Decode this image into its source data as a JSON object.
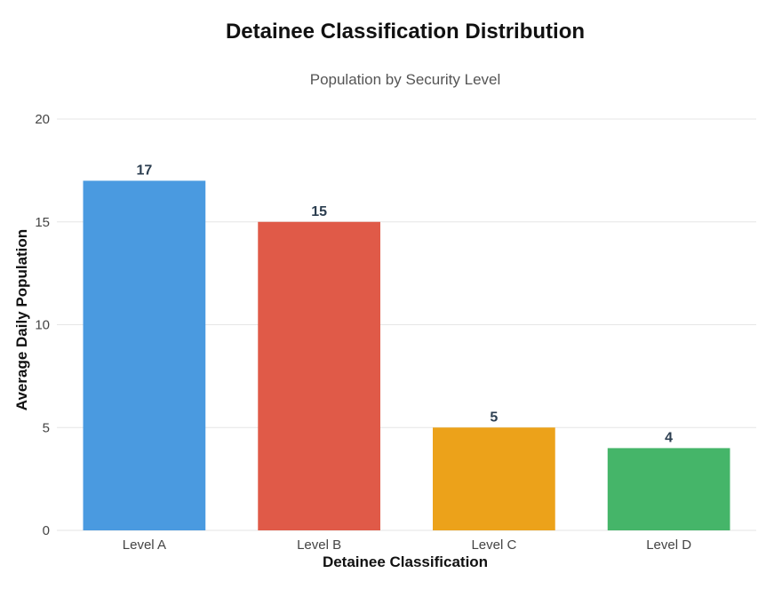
{
  "chart_data": {
    "type": "bar",
    "title": "Detainee Classification Distribution",
    "subtitle": "Population by Security Level",
    "xlabel": "Detainee Classification",
    "ylabel": "Average Daily Population",
    "categories": [
      "Level A",
      "Level B",
      "Level C",
      "Level D"
    ],
    "values": [
      17,
      15,
      5,
      4
    ],
    "colors": [
      "#4a9ae0",
      "#e05a48",
      "#eca21a",
      "#45b569"
    ],
    "ylim": [
      0,
      20
    ],
    "yticks": [
      0,
      5,
      10,
      15,
      20
    ],
    "grid": true,
    "legend": "none"
  }
}
